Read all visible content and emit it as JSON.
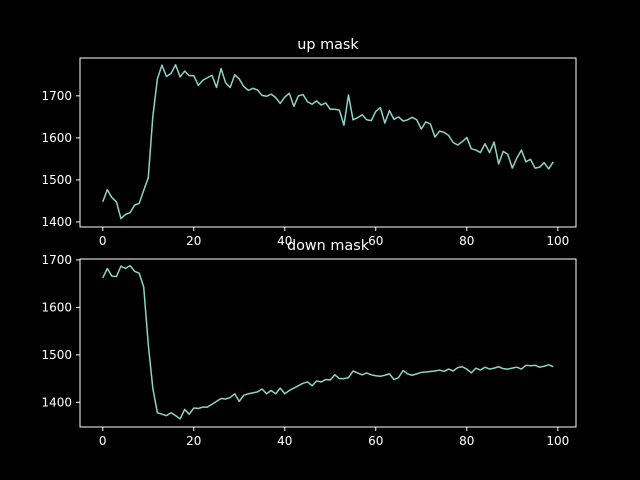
{
  "chart_data": [
    {
      "type": "line",
      "title": "up mask",
      "xlabel": "",
      "ylabel": "",
      "xlim": [
        -5,
        104
      ],
      "ylim": [
        1388,
        1790
      ],
      "xticks": [
        0,
        20,
        40,
        60,
        80,
        100
      ],
      "yticks": [
        1400,
        1500,
        1600,
        1700
      ],
      "grid": false,
      "line_color": "#8dd3c7",
      "x": [
        0,
        1,
        2,
        3,
        4,
        5,
        6,
        7,
        8,
        9,
        10,
        11,
        12,
        13,
        14,
        15,
        16,
        17,
        18,
        19,
        20,
        21,
        22,
        23,
        24,
        25,
        26,
        27,
        28,
        29,
        30,
        31,
        32,
        33,
        34,
        35,
        36,
        37,
        38,
        39,
        40,
        41,
        42,
        43,
        44,
        45,
        46,
        47,
        48,
        49,
        50,
        51,
        52,
        53,
        54,
        55,
        56,
        57,
        58,
        59,
        60,
        61,
        62,
        63,
        64,
        65,
        66,
        67,
        68,
        69,
        70,
        71,
        72,
        73,
        74,
        75,
        76,
        77,
        78,
        79,
        80,
        81,
        82,
        83,
        84,
        85,
        86,
        87,
        88,
        89,
        90,
        91,
        92,
        93,
        94,
        95,
        96,
        97,
        98,
        99
      ],
      "y": [
        1448,
        1477,
        1458,
        1448,
        1408,
        1418,
        1422,
        1440,
        1444,
        1475,
        1505,
        1650,
        1740,
        1773,
        1746,
        1753,
        1774,
        1745,
        1759,
        1748,
        1748,
        1725,
        1737,
        1743,
        1749,
        1720,
        1765,
        1731,
        1720,
        1750,
        1740,
        1722,
        1713,
        1718,
        1714,
        1701,
        1699,
        1704,
        1696,
        1682,
        1697,
        1706,
        1675,
        1700,
        1703,
        1686,
        1680,
        1688,
        1678,
        1683,
        1668,
        1668,
        1666,
        1630,
        1702,
        1643,
        1648,
        1655,
        1643,
        1641,
        1663,
        1672,
        1635,
        1665,
        1644,
        1650,
        1640,
        1643,
        1649,
        1643,
        1621,
        1638,
        1633,
        1602,
        1616,
        1613,
        1606,
        1589,
        1583,
        1591,
        1601,
        1574,
        1571,
        1565,
        1586,
        1565,
        1590,
        1538,
        1568,
        1561,
        1528,
        1552,
        1571,
        1543,
        1549,
        1528,
        1530,
        1541,
        1526,
        1543
      ]
    },
    {
      "type": "line",
      "title": "down mask",
      "xlabel": "",
      "ylabel": "",
      "xlim": [
        -5,
        104
      ],
      "ylim": [
        1348,
        1702
      ],
      "xticks": [
        0,
        20,
        40,
        60,
        80,
        100
      ],
      "yticks": [
        1400,
        1500,
        1600,
        1700
      ],
      "grid": false,
      "line_color": "#8dd3c7",
      "x": [
        0,
        1,
        2,
        3,
        4,
        5,
        6,
        7,
        8,
        9,
        10,
        11,
        12,
        13,
        14,
        15,
        16,
        17,
        18,
        19,
        20,
        21,
        22,
        23,
        24,
        25,
        26,
        27,
        28,
        29,
        30,
        31,
        32,
        33,
        34,
        35,
        36,
        37,
        38,
        39,
        40,
        41,
        42,
        43,
        44,
        45,
        46,
        47,
        48,
        49,
        50,
        51,
        52,
        53,
        54,
        55,
        56,
        57,
        58,
        59,
        60,
        61,
        62,
        63,
        64,
        65,
        66,
        67,
        68,
        69,
        70,
        71,
        72,
        73,
        74,
        75,
        76,
        77,
        78,
        79,
        80,
        81,
        82,
        83,
        84,
        85,
        86,
        87,
        88,
        89,
        90,
        91,
        92,
        93,
        94,
        95,
        96,
        97,
        98,
        99
      ],
      "y": [
        1662,
        1682,
        1666,
        1665,
        1687,
        1682,
        1688,
        1676,
        1672,
        1643,
        1522,
        1430,
        1378,
        1375,
        1372,
        1378,
        1372,
        1365,
        1385,
        1375,
        1388,
        1387,
        1390,
        1390,
        1396,
        1402,
        1408,
        1407,
        1410,
        1418,
        1402,
        1415,
        1418,
        1420,
        1422,
        1428,
        1418,
        1425,
        1418,
        1430,
        1418,
        1425,
        1430,
        1435,
        1440,
        1443,
        1435,
        1445,
        1443,
        1448,
        1447,
        1458,
        1450,
        1450,
        1452,
        1466,
        1462,
        1458,
        1462,
        1458,
        1456,
        1455,
        1457,
        1460,
        1448,
        1452,
        1467,
        1460,
        1457,
        1460,
        1463,
        1464,
        1465,
        1466,
        1468,
        1465,
        1470,
        1466,
        1473,
        1475,
        1470,
        1462,
        1472,
        1468,
        1474,
        1470,
        1472,
        1475,
        1471,
        1470,
        1472,
        1474,
        1470,
        1478,
        1477,
        1478,
        1474,
        1476,
        1479,
        1475
      ]
    }
  ]
}
